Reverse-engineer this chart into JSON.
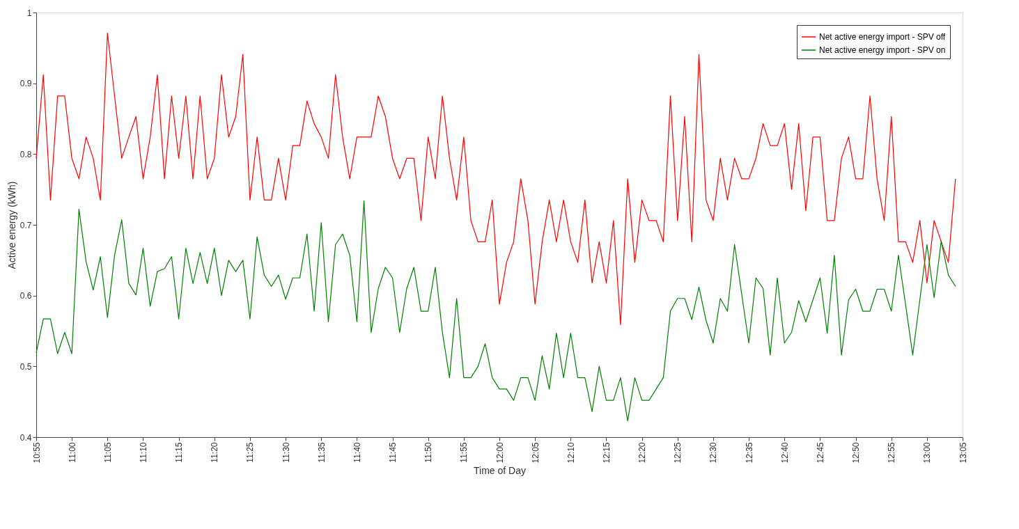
{
  "chart_data": {
    "type": "line",
    "xlabel": "Time of Day",
    "ylabel": "Active energy (kWh)",
    "x": [
      10.9167,
      10.9333,
      10.95,
      10.9667,
      10.9833,
      11.0,
      11.0167,
      11.0333,
      11.05,
      11.0667,
      11.0833,
      11.1,
      11.1167,
      11.1333,
      11.15,
      11.1667,
      11.1833,
      11.2,
      11.2167,
      11.2333,
      11.25,
      11.2667,
      11.2833,
      11.3,
      11.3167,
      11.3333,
      11.35,
      11.3667,
      11.3833,
      11.4,
      11.4167,
      11.4333,
      11.45,
      11.4667,
      11.4833,
      11.5,
      11.5167,
      11.5333,
      11.55,
      11.5667,
      11.5833,
      11.6,
      11.6167,
      11.6333,
      11.65,
      11.6667,
      11.6833,
      11.7,
      11.7167,
      11.7333,
      11.75,
      11.7667,
      11.7833,
      11.8,
      11.8167,
      11.8333,
      11.85,
      11.8667,
      11.8833,
      11.9,
      11.9167,
      11.9333,
      11.95,
      11.9667,
      11.9833,
      12.0,
      12.0167,
      12.0333,
      12.05,
      12.0667,
      12.0833,
      12.1,
      12.1167,
      12.1333,
      12.15,
      12.1667,
      12.1833,
      12.2,
      12.2167,
      12.2333,
      12.25,
      12.2667,
      12.2833,
      12.3,
      12.3167,
      12.3333,
      12.35,
      12.3667,
      12.3833,
      12.4,
      12.4167,
      12.4333,
      12.45,
      12.4667,
      12.4833,
      12.5,
      12.5167,
      12.5333,
      12.55,
      12.5667,
      12.5833,
      12.6,
      12.6167,
      12.6333,
      12.65,
      12.6667,
      12.6833,
      12.7,
      12.7167,
      12.7333,
      12.75,
      12.7667,
      12.7833,
      12.8,
      12.8167,
      12.8333,
      12.85,
      12.8667,
      12.8833,
      12.9,
      12.9167,
      12.9333,
      12.95,
      12.9667,
      12.9833,
      13.0,
      13.0167,
      13.0333,
      13.05,
      13.0667
    ],
    "series": [
      {
        "name": "Net active energy import - SPV off",
        "color": "#ff0000",
        "values": [
          0.794,
          0.912,
          0.735,
          0.882,
          0.882,
          0.794,
          0.765,
          0.824,
          0.794,
          0.735,
          0.971,
          0.882,
          0.794,
          0.824,
          0.853,
          0.765,
          0.824,
          0.912,
          0.765,
          0.882,
          0.794,
          0.882,
          0.765,
          0.882,
          0.765,
          0.794,
          0.912,
          0.824,
          0.853,
          0.941,
          0.735,
          0.824,
          0.735,
          0.735,
          0.794,
          0.735,
          0.812,
          0.812,
          0.875,
          0.843,
          0.824,
          0.794,
          0.912,
          0.824,
          0.765,
          0.824,
          0.824,
          0.824,
          0.882,
          0.853,
          0.794,
          0.765,
          0.794,
          0.794,
          0.706,
          0.824,
          0.765,
          0.882,
          0.794,
          0.735,
          0.824,
          0.706,
          0.676,
          0.676,
          0.735,
          0.588,
          0.647,
          0.676,
          0.765,
          0.706,
          0.588,
          0.676,
          0.735,
          0.676,
          0.735,
          0.676,
          0.647,
          0.735,
          0.618,
          0.676,
          0.618,
          0.706,
          0.559,
          0.765,
          0.647,
          0.735,
          0.706,
          0.706,
          0.676,
          0.882,
          0.706,
          0.853,
          0.676,
          0.941,
          0.735,
          0.706,
          0.794,
          0.735,
          0.794,
          0.765,
          0.765,
          0.794,
          0.843,
          0.812,
          0.812,
          0.843,
          0.75,
          0.843,
          0.72,
          0.824,
          0.824,
          0.706,
          0.706,
          0.794,
          0.824,
          0.765,
          0.765,
          0.882,
          0.765,
          0.706,
          0.853,
          0.676,
          0.676,
          0.647,
          0.706,
          0.618,
          0.706,
          0.676,
          0.647,
          0.765
        ]
      },
      {
        "name": "Net active energy import - SPV on",
        "color": "#008000",
        "values": [
          0.519,
          0.567,
          0.567,
          0.518,
          0.548,
          0.518,
          0.722,
          0.648,
          0.608,
          0.655,
          0.569,
          0.657,
          0.707,
          0.617,
          0.601,
          0.667,
          0.585,
          0.634,
          0.638,
          0.655,
          0.567,
          0.667,
          0.617,
          0.661,
          0.617,
          0.667,
          0.6,
          0.65,
          0.634,
          0.65,
          0.567,
          0.683,
          0.629,
          0.613,
          0.629,
          0.595,
          0.625,
          0.625,
          0.687,
          0.578,
          0.703,
          0.563,
          0.672,
          0.687,
          0.657,
          0.563,
          0.734,
          0.548,
          0.61,
          0.64,
          0.625,
          0.548,
          0.61,
          0.64,
          0.578,
          0.578,
          0.64,
          0.548,
          0.484,
          0.596,
          0.484,
          0.484,
          0.5,
          0.532,
          0.484,
          0.468,
          0.468,
          0.452,
          0.484,
          0.484,
          0.452,
          0.515,
          0.468,
          0.547,
          0.484,
          0.547,
          0.484,
          0.484,
          0.436,
          0.5,
          0.452,
          0.452,
          0.484,
          0.423,
          0.484,
          0.452,
          0.452,
          0.468,
          0.484,
          0.578,
          0.596,
          0.596,
          0.566,
          0.612,
          0.565,
          0.533,
          0.596,
          0.578,
          0.672,
          0.602,
          0.533,
          0.625,
          0.61,
          0.516,
          0.625,
          0.533,
          0.548,
          0.593,
          0.563,
          0.594,
          0.625,
          0.547,
          0.657,
          0.516,
          0.594,
          0.609,
          0.578,
          0.578,
          0.609,
          0.609,
          0.578,
          0.657,
          0.587,
          0.516,
          0.594,
          0.672,
          0.597,
          0.677,
          0.629,
          0.613
        ]
      }
    ],
    "xlim": [
      10.9167,
      13.0833
    ],
    "xticks": [
      {
        "value": 10.9167,
        "label": "10:55"
      },
      {
        "value": 11.0,
        "label": "11:00"
      },
      {
        "value": 11.0833,
        "label": "11:05"
      },
      {
        "value": 11.1667,
        "label": "11:10"
      },
      {
        "value": 11.25,
        "label": "11:15"
      },
      {
        "value": 11.3333,
        "label": "11:20"
      },
      {
        "value": 11.4167,
        "label": "11:25"
      },
      {
        "value": 11.5,
        "label": "11:30"
      },
      {
        "value": 11.5833,
        "label": "11:35"
      },
      {
        "value": 11.6667,
        "label": "11:40"
      },
      {
        "value": 11.75,
        "label": "11:45"
      },
      {
        "value": 11.8333,
        "label": "11:50"
      },
      {
        "value": 11.9167,
        "label": "11:55"
      },
      {
        "value": 12.0,
        "label": "12:00"
      },
      {
        "value": 12.0833,
        "label": "12:05"
      },
      {
        "value": 12.1667,
        "label": "12:10"
      },
      {
        "value": 12.25,
        "label": "12:15"
      },
      {
        "value": 12.3333,
        "label": "12:20"
      },
      {
        "value": 12.4167,
        "label": "12:25"
      },
      {
        "value": 12.5,
        "label": "12:30"
      },
      {
        "value": 12.5833,
        "label": "12:35"
      },
      {
        "value": 12.6667,
        "label": "12:40"
      },
      {
        "value": 12.75,
        "label": "12:45"
      },
      {
        "value": 12.8333,
        "label": "12:50"
      },
      {
        "value": 12.9167,
        "label": "12:55"
      },
      {
        "value": 13.0,
        "label": "13:00"
      },
      {
        "value": 13.0833,
        "label": "13:05"
      }
    ],
    "ylim": [
      0.4,
      1
    ],
    "yticks": [
      0.4,
      0.5,
      0.6,
      0.7,
      0.8,
      0.9,
      1
    ],
    "legend": "top right",
    "grid": false
  }
}
